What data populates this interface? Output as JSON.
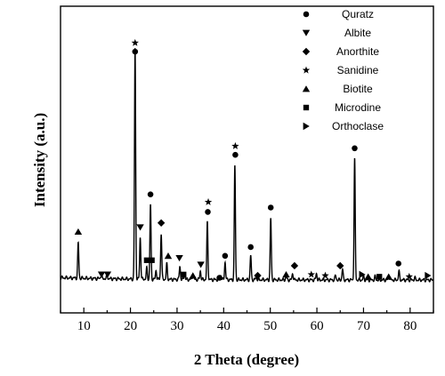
{
  "chart_data": {
    "type": "line",
    "title": "",
    "xlabel": "2 Theta (degree)",
    "ylabel": "Intensity (a.u.)",
    "xlim": [
      5,
      85
    ],
    "xticks": [
      10,
      20,
      30,
      40,
      50,
      60,
      70,
      80
    ],
    "y_ticks_shown": false,
    "grid": false,
    "legend_position": "top-right",
    "colors": {
      "line": "#000000",
      "markers": "#000000"
    },
    "legend": [
      {
        "phase": "Quratz",
        "marker": "circle"
      },
      {
        "phase": "Albite",
        "marker": "triangle-down"
      },
      {
        "phase": "Anorthite",
        "marker": "diamond"
      },
      {
        "phase": "Sanidine",
        "marker": "star"
      },
      {
        "phase": "Biotite",
        "marker": "triangle-up"
      },
      {
        "phase": "Microdine",
        "marker": "square"
      },
      {
        "phase": "Orthoclase",
        "marker": "triangle-right"
      }
    ],
    "baseline_intensity": 4,
    "peaks": [
      {
        "x": 8.8,
        "y": 16
      },
      {
        "x": 13.7,
        "y": 1.5
      },
      {
        "x": 15.0,
        "y": 1.5
      },
      {
        "x": 20.9,
        "y": 7
      },
      {
        "x": 21.0,
        "y": 100
      },
      {
        "x": 22.1,
        "y": 19
      },
      {
        "x": 23.5,
        "y": 5
      },
      {
        "x": 24.3,
        "y": 34
      },
      {
        "x": 25.5,
        "y": 4
      },
      {
        "x": 26.6,
        "y": 21
      },
      {
        "x": 27.8,
        "y": 7
      },
      {
        "x": 30.6,
        "y": 6
      },
      {
        "x": 31.6,
        "y": 3
      },
      {
        "x": 33.4,
        "y": 2
      },
      {
        "x": 35.0,
        "y": 4
      },
      {
        "x": 36.5,
        "y": 26
      },
      {
        "x": 39.4,
        "y": 2
      },
      {
        "x": 40.3,
        "y": 8
      },
      {
        "x": 42.4,
        "y": 52
      },
      {
        "x": 45.8,
        "y": 11
      },
      {
        "x": 47.0,
        "y": 1.5
      },
      {
        "x": 50.1,
        "y": 28
      },
      {
        "x": 53.4,
        "y": 1.5
      },
      {
        "x": 54.8,
        "y": 3
      },
      {
        "x": 59.9,
        "y": 3
      },
      {
        "x": 64.0,
        "y": 2
      },
      {
        "x": 65.5,
        "y": 5
      },
      {
        "x": 68.1,
        "y": 55
      },
      {
        "x": 70.0,
        "y": 1.5
      },
      {
        "x": 72.5,
        "y": 1.5
      },
      {
        "x": 75.5,
        "y": 1.5
      },
      {
        "x": 77.6,
        "y": 4
      },
      {
        "x": 81.0,
        "y": 1
      }
    ],
    "markers": [
      {
        "phase": "Biotite",
        "x": 8.8,
        "y": 22
      },
      {
        "phase": "Albite",
        "x": 13.8,
        "y": 2.5
      },
      {
        "phase": "Albite",
        "x": 15.1,
        "y": 2.5
      },
      {
        "phase": "Quratz",
        "x": 21.0,
        "y": 104
      },
      {
        "phase": "Sanidine",
        "x": 21.0,
        "y": 108
      },
      {
        "phase": "Albite",
        "x": 22.1,
        "y": 24
      },
      {
        "phase": "Microdine",
        "x": 23.5,
        "y": 9
      },
      {
        "phase": "Microdine",
        "x": 24.6,
        "y": 9
      },
      {
        "phase": "Quratz",
        "x": 24.3,
        "y": 39
      },
      {
        "phase": "Anorthite",
        "x": 26.6,
        "y": 26
      },
      {
        "phase": "Biotite",
        "x": 28.1,
        "y": 11
      },
      {
        "phase": "Albite",
        "x": 30.5,
        "y": 10
      },
      {
        "phase": "Microdine",
        "x": 31.4,
        "y": 2.5
      },
      {
        "phase": "Biotite",
        "x": 33.4,
        "y": 2
      },
      {
        "phase": "Albite",
        "x": 35.1,
        "y": 7
      },
      {
        "phase": "Quratz",
        "x": 36.6,
        "y": 31
      },
      {
        "phase": "Sanidine",
        "x": 36.7,
        "y": 35.5
      },
      {
        "phase": "Quratz",
        "x": 39.1,
        "y": 1
      },
      {
        "phase": "Quratz",
        "x": 40.3,
        "y": 11
      },
      {
        "phase": "Quratz",
        "x": 42.5,
        "y": 57
      },
      {
        "phase": "Sanidine",
        "x": 42.5,
        "y": 61
      },
      {
        "phase": "Quratz",
        "x": 45.8,
        "y": 15
      },
      {
        "phase": "Anorthite",
        "x": 47.3,
        "y": 2
      },
      {
        "phase": "Quratz",
        "x": 50.1,
        "y": 33
      },
      {
        "phase": "Biotite",
        "x": 53.4,
        "y": 2.5
      },
      {
        "phase": "Anorthite",
        "x": 55.2,
        "y": 6.5
      },
      {
        "phase": "Sanidine",
        "x": 58.8,
        "y": 2.5
      },
      {
        "phase": "Sanidine",
        "x": 61.8,
        "y": 2
      },
      {
        "phase": "Anorthite",
        "x": 65.0,
        "y": 6.5
      },
      {
        "phase": "Quratz",
        "x": 68.1,
        "y": 60
      },
      {
        "phase": "Orthoclase",
        "x": 69.7,
        "y": 2.5
      },
      {
        "phase": "Biotite",
        "x": 71.0,
        "y": 1.5
      },
      {
        "phase": "Microdine",
        "x": 73.4,
        "y": 1.5
      },
      {
        "phase": "Biotite",
        "x": 75.4,
        "y": 1.5
      },
      {
        "phase": "Quratz",
        "x": 77.5,
        "y": 7.5
      },
      {
        "phase": "Sanidine",
        "x": 79.8,
        "y": 1.5
      },
      {
        "phase": "Orthoclase",
        "x": 83.8,
        "y": 2
      }
    ]
  }
}
